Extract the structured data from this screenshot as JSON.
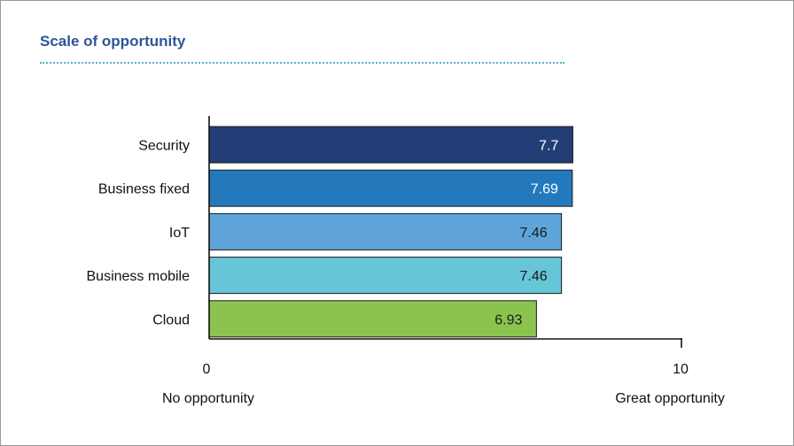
{
  "chart_data": {
    "type": "bar",
    "orientation": "horizontal",
    "title": "Scale of opportunity",
    "categories": [
      "Security",
      "Business fixed",
      "IoT",
      "Business mobile",
      "Cloud"
    ],
    "values": [
      7.7,
      7.69,
      7.46,
      7.46,
      6.93
    ],
    "value_labels": [
      "7.7",
      "7.69",
      "7.46",
      "7.46",
      "6.93"
    ],
    "colors": [
      "#233e77",
      "#2479bd",
      "#5ea4d9",
      "#66c5d6",
      "#8bc34f"
    ],
    "label_colors": [
      "#ffffff",
      "#ffffff",
      "#1a1a1a",
      "#1a1a1a",
      "#1a1a1a"
    ],
    "xlim": [
      0,
      10
    ],
    "x_ticks": [
      "0",
      "10"
    ],
    "x_min_label": "No opportunity",
    "x_max_label": "Great opportunity",
    "grid": false,
    "legend": "none"
  },
  "accent_color": "#2f5597"
}
